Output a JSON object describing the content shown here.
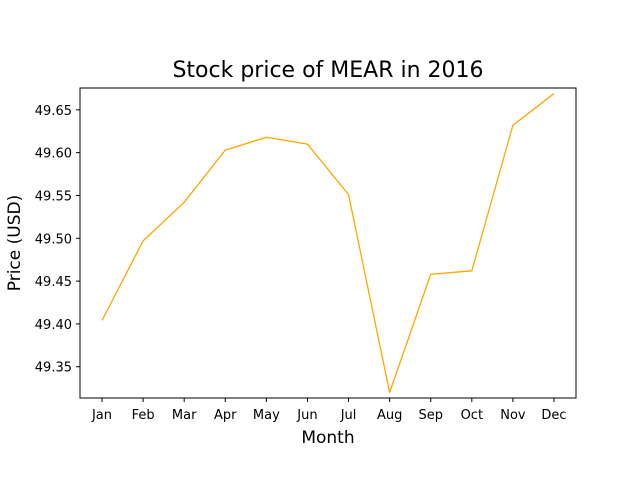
{
  "chart_data": {
    "type": "line",
    "title": "Stock price of MEAR in 2016",
    "xlabel": "Month",
    "ylabel": "Price (USD)",
    "categories": [
      "Jan",
      "Feb",
      "Mar",
      "Apr",
      "May",
      "Jun",
      "Jul",
      "Aug",
      "Sep",
      "Oct",
      "Nov",
      "Dec"
    ],
    "series": [
      {
        "values": [
          49.404,
          49.497,
          49.542,
          49.603,
          49.618,
          49.61,
          49.551,
          49.32,
          49.458,
          49.462,
          49.632,
          49.669
        ],
        "color": "#ffa500"
      }
    ],
    "ylim": [
      49.3135,
      49.6755
    ],
    "yticks": [
      "49.35",
      "49.40",
      "49.45",
      "49.50",
      "49.55",
      "49.60",
      "49.65"
    ],
    "grid": false,
    "legend": "none"
  }
}
